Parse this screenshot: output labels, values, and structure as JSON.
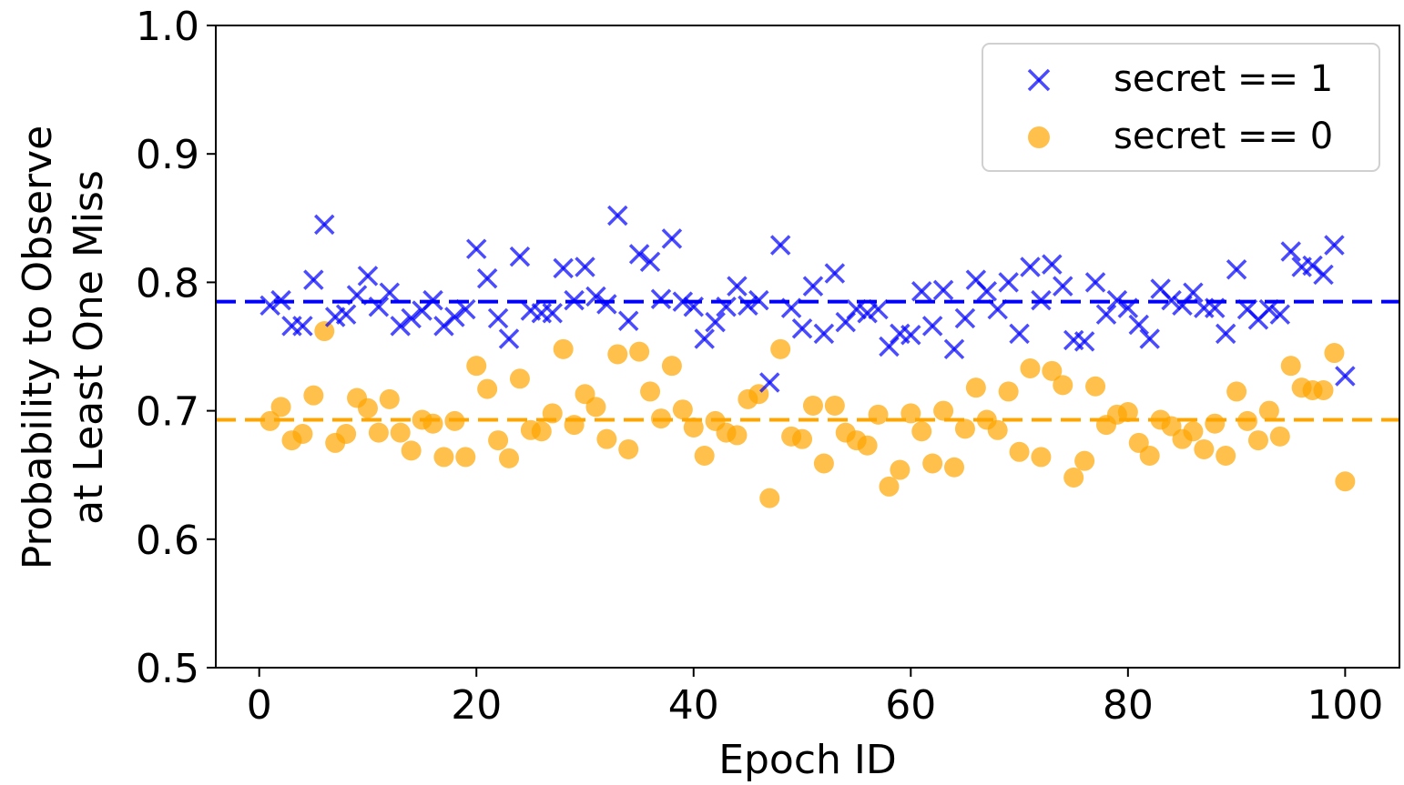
{
  "chart_data": {
    "type": "scatter",
    "title": "",
    "xlabel": "Epoch ID",
    "ylabel_lines": [
      "Probability to Observe",
      "at Least One Miss"
    ],
    "xlim": [
      -4,
      105
    ],
    "ylim": [
      0.5,
      1.0
    ],
    "x_ticks": [
      0,
      20,
      40,
      60,
      80,
      100
    ],
    "y_ticks": [
      0.5,
      0.6,
      0.7,
      0.8,
      0.9,
      1.0
    ],
    "x_tick_labels": [
      "0",
      "20",
      "40",
      "60",
      "80",
      "100"
    ],
    "y_tick_labels": [
      "0.5",
      "0.6",
      "0.7",
      "0.8",
      "0.9",
      "1.0"
    ],
    "legend_position": "upper right",
    "grid": false,
    "series": [
      {
        "name": "secret == 1",
        "marker": "x",
        "color": "#0000ff",
        "mean_line": 0.785,
        "x": [
          1,
          2,
          3,
          4,
          5,
          6,
          7,
          8,
          9,
          10,
          11,
          12,
          13,
          14,
          15,
          16,
          17,
          18,
          19,
          20,
          21,
          22,
          23,
          24,
          25,
          26,
          27,
          28,
          29,
          30,
          31,
          32,
          33,
          34,
          35,
          36,
          37,
          38,
          39,
          40,
          41,
          42,
          43,
          44,
          45,
          46,
          47,
          48,
          49,
          50,
          51,
          52,
          53,
          54,
          55,
          56,
          57,
          58,
          59,
          60,
          61,
          62,
          63,
          64,
          65,
          66,
          67,
          68,
          69,
          70,
          71,
          72,
          73,
          74,
          75,
          76,
          77,
          78,
          79,
          80,
          81,
          82,
          83,
          84,
          85,
          86,
          87,
          88,
          89,
          90,
          91,
          92,
          93,
          94,
          95,
          96,
          97,
          98,
          99,
          100
        ],
        "y": [
          0.782,
          0.786,
          0.766,
          0.766,
          0.802,
          0.845,
          0.773,
          0.775,
          0.79,
          0.805,
          0.781,
          0.792,
          0.766,
          0.772,
          0.778,
          0.786,
          0.766,
          0.773,
          0.779,
          0.826,
          0.803,
          0.772,
          0.756,
          0.82,
          0.778,
          0.776,
          0.776,
          0.811,
          0.786,
          0.812,
          0.789,
          0.783,
          0.852,
          0.77,
          0.822,
          0.816,
          0.787,
          0.834,
          0.785,
          0.781,
          0.756,
          0.769,
          0.781,
          0.797,
          0.782,
          0.786,
          0.722,
          0.829,
          0.78,
          0.764,
          0.797,
          0.76,
          0.807,
          0.769,
          0.779,
          0.776,
          0.779,
          0.75,
          0.76,
          0.759,
          0.793,
          0.766,
          0.794,
          0.748,
          0.772,
          0.802,
          0.793,
          0.779,
          0.8,
          0.76,
          0.812,
          0.786,
          0.814,
          0.797,
          0.755,
          0.754,
          0.8,
          0.775,
          0.786,
          0.78,
          0.767,
          0.756,
          0.795,
          0.786,
          0.782,
          0.792,
          0.78,
          0.78,
          0.76,
          0.81,
          0.779,
          0.771,
          0.779,
          0.775,
          0.824,
          0.812,
          0.813,
          0.806,
          0.829,
          0.727
        ]
      },
      {
        "name": "secret == 0",
        "marker": "o",
        "color": "#ffa500",
        "mean_line": 0.693,
        "x": [
          1,
          2,
          3,
          4,
          5,
          6,
          7,
          8,
          9,
          10,
          11,
          12,
          13,
          14,
          15,
          16,
          17,
          18,
          19,
          20,
          21,
          22,
          23,
          24,
          25,
          26,
          27,
          28,
          29,
          30,
          31,
          32,
          33,
          34,
          35,
          36,
          37,
          38,
          39,
          40,
          41,
          42,
          43,
          44,
          45,
          46,
          47,
          48,
          49,
          50,
          51,
          52,
          53,
          54,
          55,
          56,
          57,
          58,
          59,
          60,
          61,
          62,
          63,
          64,
          65,
          66,
          67,
          68,
          69,
          70,
          71,
          72,
          73,
          74,
          75,
          76,
          77,
          78,
          79,
          80,
          81,
          82,
          83,
          84,
          85,
          86,
          87,
          88,
          89,
          90,
          91,
          92,
          93,
          94,
          95,
          96,
          97,
          98,
          99,
          100
        ],
        "y": [
          0.692,
          0.703,
          0.677,
          0.682,
          0.712,
          0.762,
          0.675,
          0.682,
          0.71,
          0.702,
          0.683,
          0.709,
          0.683,
          0.669,
          0.693,
          0.69,
          0.664,
          0.692,
          0.664,
          0.735,
          0.717,
          0.677,
          0.663,
          0.725,
          0.685,
          0.684,
          0.698,
          0.748,
          0.689,
          0.713,
          0.703,
          0.678,
          0.744,
          0.67,
          0.746,
          0.715,
          0.694,
          0.735,
          0.701,
          0.687,
          0.665,
          0.692,
          0.683,
          0.681,
          0.709,
          0.713,
          0.632,
          0.748,
          0.68,
          0.678,
          0.704,
          0.659,
          0.704,
          0.683,
          0.677,
          0.673,
          0.697,
          0.641,
          0.654,
          0.698,
          0.684,
          0.659,
          0.7,
          0.656,
          0.686,
          0.718,
          0.693,
          0.685,
          0.715,
          0.668,
          0.733,
          0.664,
          0.731,
          0.72,
          0.648,
          0.661,
          0.719,
          0.689,
          0.697,
          0.699,
          0.675,
          0.665,
          0.693,
          0.688,
          0.678,
          0.684,
          0.67,
          0.69,
          0.665,
          0.715,
          0.692,
          0.677,
          0.7,
          0.68,
          0.735,
          0.718,
          0.716,
          0.716,
          0.745,
          0.645
        ]
      }
    ]
  }
}
